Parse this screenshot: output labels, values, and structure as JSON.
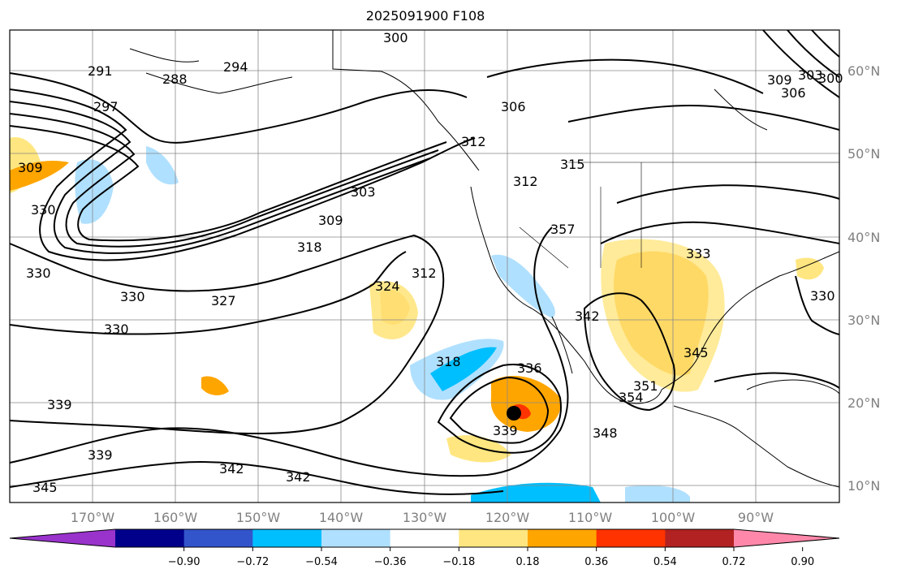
{
  "title": "2025091900 F108",
  "lat_labels": [
    "60°N",
    "50°N",
    "40°N",
    "30°N",
    "20°N",
    "10°N"
  ],
  "lon_labels": [
    "170°W",
    "160°W",
    "150°W",
    "140°W",
    "130°W",
    "120°W",
    "110°W",
    "100°W",
    "90°W"
  ],
  "colorbar": {
    "colors": [
      "#9933cc",
      "#00008b",
      "#3355cc",
      "#00bfff",
      "#b0e0ff",
      "#ffffff",
      "#ffe680",
      "#ffa500",
      "#ff3300",
      "#b22222",
      "#ff88aa"
    ],
    "tick_labels": [
      "−0.90",
      "−0.72",
      "−0.54",
      "−0.36",
      "−0.18",
      "0.18",
      "0.36",
      "0.54",
      "0.72",
      "0.90"
    ]
  },
  "contour_labels": [
    "300",
    "291",
    "288",
    "294",
    "297",
    "306",
    "312",
    "315",
    "312",
    "309",
    "303",
    "309",
    "318",
    "330",
    "330",
    "330",
    "327",
    "330",
    "324",
    "312",
    "318",
    "336",
    "339",
    "342",
    "351",
    "354",
    "348",
    "345",
    "333",
    "330",
    "300",
    "303",
    "306",
    "309",
    "339",
    "339",
    "342",
    "342",
    "345",
    "357"
  ],
  "colors": {
    "contour": "#000000",
    "grid": "#888888",
    "coast": "#000000"
  }
}
